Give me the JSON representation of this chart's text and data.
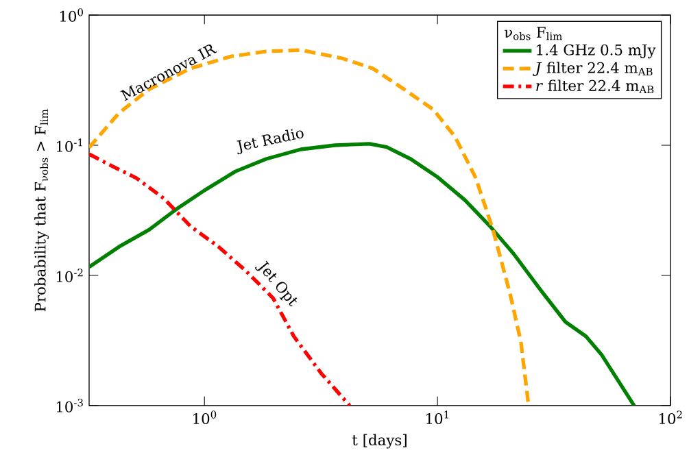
{
  "chart_data": {
    "type": "line",
    "xlabel": "t [days]",
    "ylabel": "Probability that F$_{νobs}$ > F$_{lim}$",
    "legend_title": "ν$_{obs}$      F$_{lim}$",
    "log": "xy",
    "grid": false,
    "legend": "top right",
    "xlim": [
      0.32,
      100
    ],
    "ylim": [
      0.001,
      1
    ],
    "xticks": [
      {
        "value": 1,
        "label": "10$^{0}$"
      },
      {
        "value": 10,
        "label": "10$^{1}$"
      },
      {
        "value": 100,
        "label": "10$^{2}$"
      }
    ],
    "yticks": [
      {
        "value": 0.001,
        "label": "10$^{-3}$"
      },
      {
        "value": 0.01,
        "label": "10$^{-2}$"
      },
      {
        "value": 0.1,
        "label": "10$^{-1}$"
      },
      {
        "value": 1,
        "label": "10$^{0}$"
      }
    ],
    "series": [
      {
        "name": "1.4 GHz   0.5 mJy",
        "color": "#008000",
        "line_style": "solid",
        "x": [
          0.32,
          0.43,
          0.58,
          0.76,
          1,
          1.36,
          1.84,
          2.59,
          3.63,
          5.1,
          6.05,
          7.67,
          10,
          13.1,
          16.8,
          21.2,
          27.9,
          35.4,
          43.4,
          50.7,
          69.8
        ],
        "values": [
          0.0116,
          0.0166,
          0.0225,
          0.0324,
          0.045,
          0.063,
          0.0785,
          0.093,
          0.1,
          0.1026,
          0.097,
          0.0785,
          0.057,
          0.038,
          0.0239,
          0.0147,
          0.0076,
          0.0044,
          0.0034,
          0.00245,
          0.001
        ]
      },
      {
        "name": "*J* filter   22.4 m$_{AB}$",
        "color": "#ffa500",
        "line_style": "dashed",
        "x": [
          0.32,
          0.43,
          0.58,
          0.87,
          1.31,
          1.84,
          2.59,
          3.89,
          5.28,
          7.17,
          9.6,
          11.9,
          14.6,
          17.3,
          20.5,
          22.8,
          24.6
        ],
        "values": [
          0.096,
          0.177,
          0.27,
          0.389,
          0.483,
          0.526,
          0.539,
          0.466,
          0.389,
          0.27,
          0.188,
          0.116,
          0.056,
          0.0225,
          0.0072,
          0.0031,
          0.001
        ]
      },
      {
        "name": "*r* filter   22.4 m$_{AB}$",
        "color": "#ff0000",
        "line_style": "dashdot",
        "x": [
          0.32,
          0.39,
          0.51,
          0.67,
          0.87,
          1.15,
          1.5,
          1.97,
          2.42,
          3.17,
          4.2
        ],
        "values": [
          0.0855,
          0.071,
          0.056,
          0.039,
          0.0239,
          0.0166,
          0.0109,
          0.0067,
          0.0034,
          0.00177,
          0.001
        ]
      }
    ],
    "annotations": [
      "Macronova IR",
      "Jet Radio",
      "Jet Opt"
    ]
  }
}
